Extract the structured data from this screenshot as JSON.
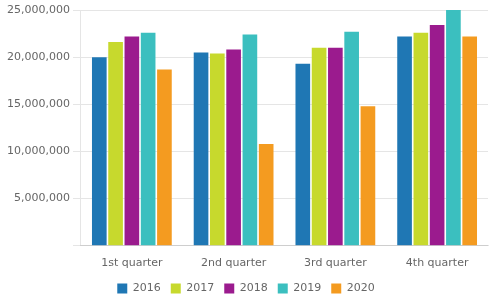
{
  "chart_data": {
    "type": "bar",
    "categories": [
      "1st quarter",
      "2nd quarter",
      "3rd quarter",
      "4th quarter"
    ],
    "series": [
      {
        "name": "2016",
        "color": "#1f77b4",
        "values": [
          20000000,
          20500000,
          19300000,
          22200000
        ]
      },
      {
        "name": "2017",
        "color": "#c7d92d",
        "values": [
          21600000,
          20400000,
          21000000,
          22600000
        ]
      },
      {
        "name": "2018",
        "color": "#9b1b8e",
        "values": [
          22200000,
          20800000,
          21000000,
          23400000
        ]
      },
      {
        "name": "2019",
        "color": "#3bbfbf",
        "values": [
          22600000,
          22400000,
          22700000,
          25000000
        ]
      },
      {
        "name": "2020",
        "color": "#f49b20",
        "values": [
          18700000,
          10800000,
          14800000,
          22200000
        ]
      }
    ],
    "ylim": [
      0,
      25000000
    ],
    "yticks": [
      {
        "value": 0,
        "label": ""
      },
      {
        "value": 5000000,
        "label": "5,000,000"
      },
      {
        "value": 10000000,
        "label": "10,000,000"
      },
      {
        "value": 15000000,
        "label": "15,000,000"
      },
      {
        "value": 20000000,
        "label": "20,000,000"
      },
      {
        "value": 25000000,
        "label": "25,000,000"
      }
    ],
    "grid": true,
    "legend": "bottom"
  }
}
